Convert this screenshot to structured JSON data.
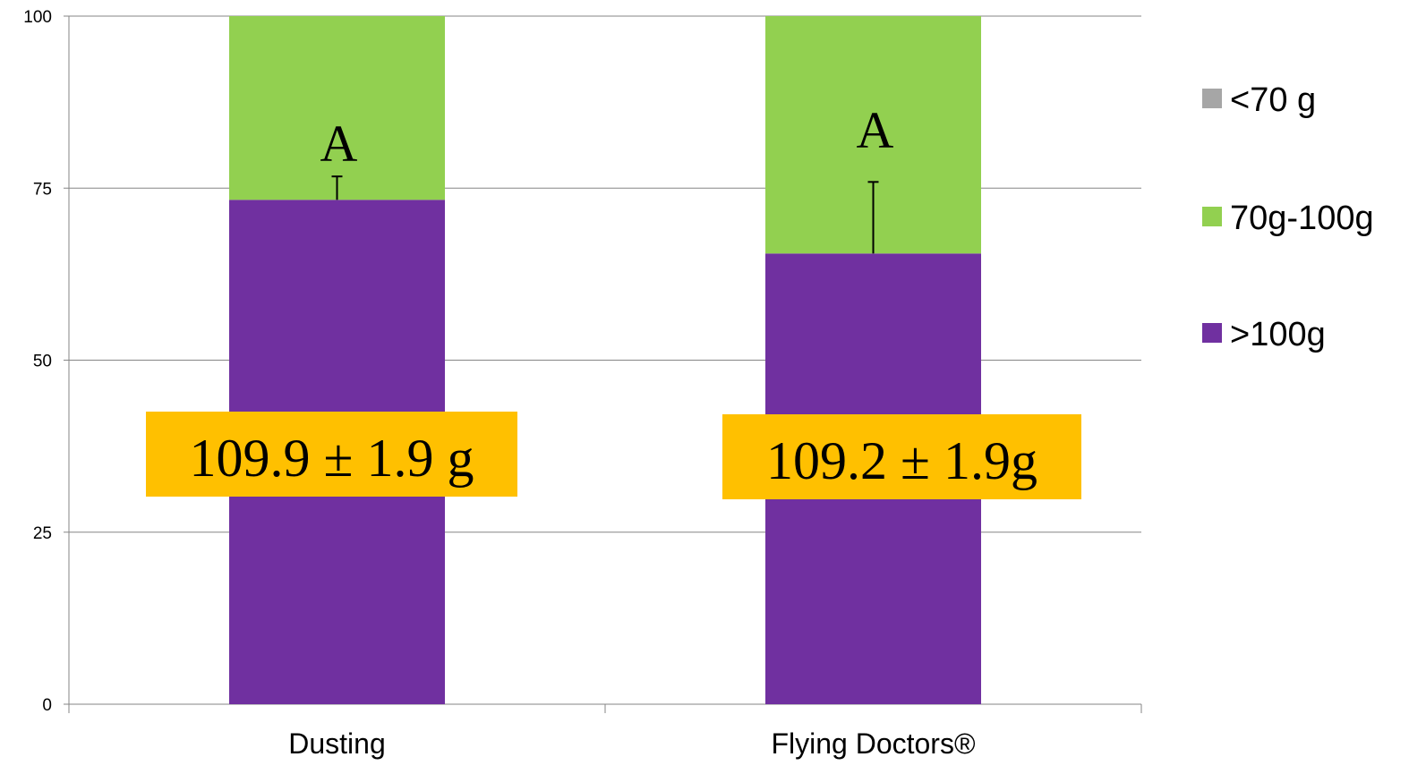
{
  "chart_data": {
    "type": "bar",
    "stacked": true,
    "categories": [
      "Dusting",
      "Flying Doctors®"
    ],
    "series": [
      {
        "name": ">100g",
        "color": "#7030a0",
        "values": [
          73.3,
          65.5
        ]
      },
      {
        "name": "70g-100g",
        "color": "#92d050",
        "values": [
          26.7,
          34.5
        ]
      },
      {
        "name": "<70 g",
        "color": "#a6a6a6",
        "values": [
          0,
          0
        ]
      }
    ],
    "error_bars": [
      {
        "category": "Dusting",
        "base": 73.3,
        "top": 76.7
      },
      {
        "category": "Flying Doctors®",
        "base": 65.5,
        "top": 75.9
      }
    ],
    "significance_letters": [
      "A",
      "A"
    ],
    "mean_labels": [
      "109.9  ± 1.9 g",
      "109.2  ± 1.9g"
    ],
    "mean_label_color": "#ffc000",
    "yticks": [
      "0",
      "25",
      "50",
      "75",
      "100"
    ],
    "ylim": [
      0,
      100
    ],
    "grid": true,
    "legend_position": "right",
    "legend_order": [
      "<70 g",
      "70g-100g",
      ">100g"
    ],
    "title": "",
    "xlabel": "",
    "ylabel": ""
  }
}
